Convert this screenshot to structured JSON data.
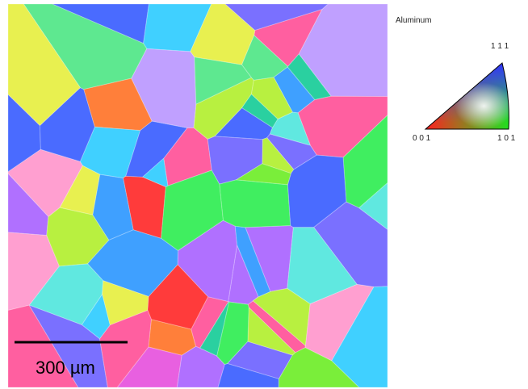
{
  "map": {
    "scale_bar": "300 µm"
  },
  "legend": {
    "title": "Aluminum",
    "corner_001": "0 0 1",
    "corner_101": "1 0 1",
    "corner_111": "1 1 1"
  }
}
